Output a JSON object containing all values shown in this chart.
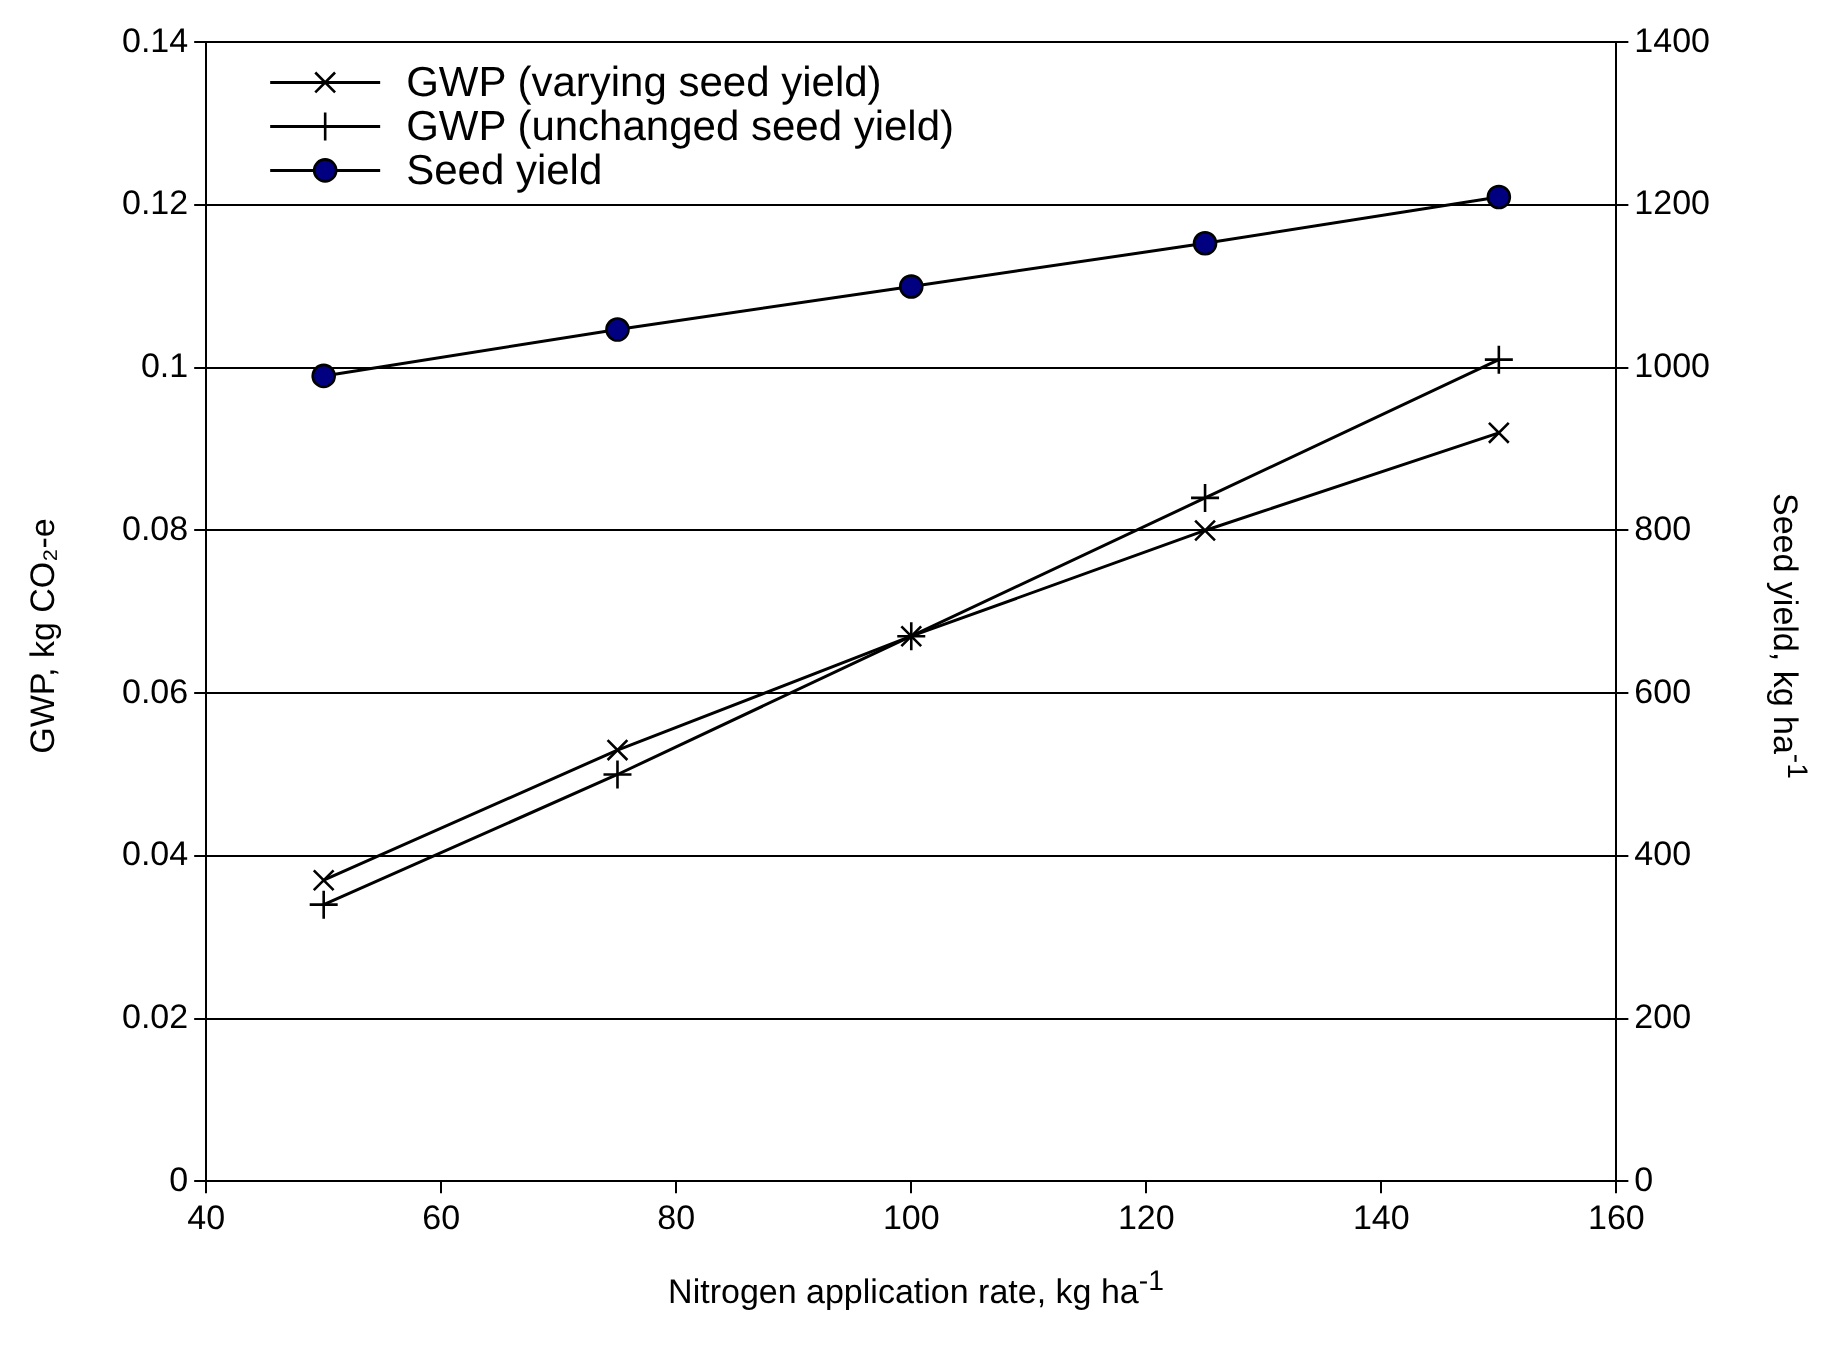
{
  "chart_data": {
    "type": "line",
    "xlabel": "Nitrogen application rate, kg ha$^{-1}$",
    "ylabel": "GWP, kg CO₂-e",
    "y2label": "Seed yield, kg ha$^{-1}$",
    "x": [
      50,
      75,
      100,
      125,
      150
    ],
    "series": [
      {
        "name": "GWP (varying seed yield)",
        "color": "#000000",
        "marker": "cross",
        "values": [
          0.037,
          0.053,
          0.067,
          0.08,
          0.092
        ]
      },
      {
        "name": "GWP (unchanged seed yield)",
        "color": "#000000",
        "marker": "plus",
        "values": [
          0.034,
          0.05,
          0.067,
          0.084,
          0.101
        ]
      },
      {
        "name": "Seed yield",
        "color": "#000080",
        "marker": "circle",
        "axis": "y2",
        "values": [
          990,
          1047,
          1100,
          1153,
          1210
        ]
      }
    ],
    "xlim": [
      40,
      160
    ],
    "xticks": [
      40,
      60,
      80,
      100,
      120,
      140,
      160
    ],
    "ylim": [
      0,
      0.14
    ],
    "yticks": [
      0,
      0.02,
      0.04,
      0.06,
      0.08,
      0.1,
      0.12,
      0.14
    ],
    "y2lim": [
      0,
      1400
    ],
    "y2ticks": [
      0,
      200,
      400,
      600,
      800,
      1000,
      1200,
      1400
    ],
    "grid": "y",
    "legend": "top left",
    "line_style": "solid"
  }
}
